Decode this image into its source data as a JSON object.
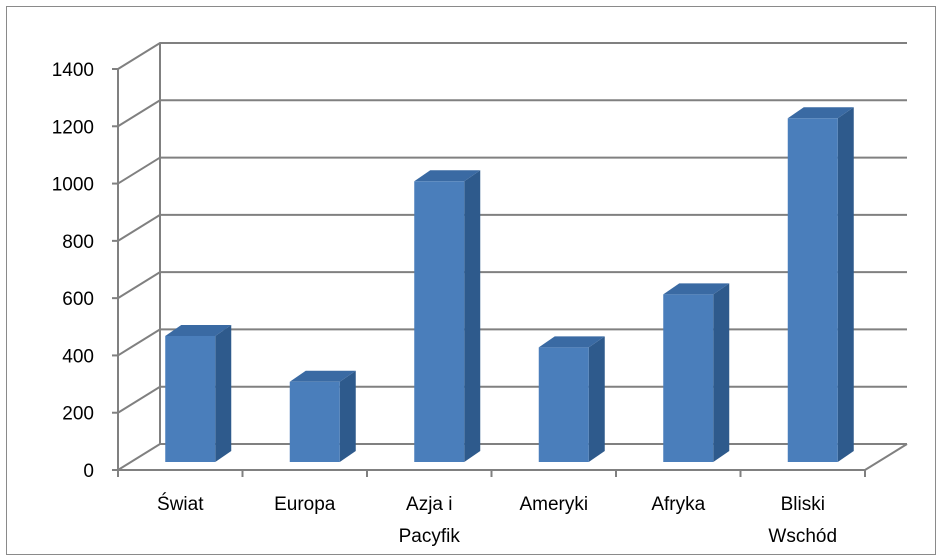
{
  "chart_data": {
    "type": "bar",
    "categories": [
      "Świat",
      "Europa",
      "Azja i Pacyfik",
      "Ameryki",
      "Afryka",
      "Bliski Wschód"
    ],
    "category_lines": [
      [
        "Świat"
      ],
      [
        "Europa"
      ],
      [
        "Azja i",
        "Pacyfik"
      ],
      [
        "Ameryki"
      ],
      [
        "Afryka"
      ],
      [
        "Bliski",
        "Wschód"
      ]
    ],
    "values": [
      475,
      315,
      1015,
      435,
      620,
      1235
    ],
    "yticks": [
      "0",
      "200",
      "400",
      "600",
      "800",
      "1000",
      "1200",
      "1400"
    ],
    "ylim": [
      0,
      1400
    ],
    "title": "",
    "xlabel": "",
    "ylabel": "",
    "grid": true,
    "legend": "none",
    "colors": {
      "bar_front": "#4a7ebb",
      "bar_side": "#2e5a8c",
      "bar_top": "#3a6aa3",
      "grid": "#808080",
      "frame": "#8a8a8a"
    }
  }
}
